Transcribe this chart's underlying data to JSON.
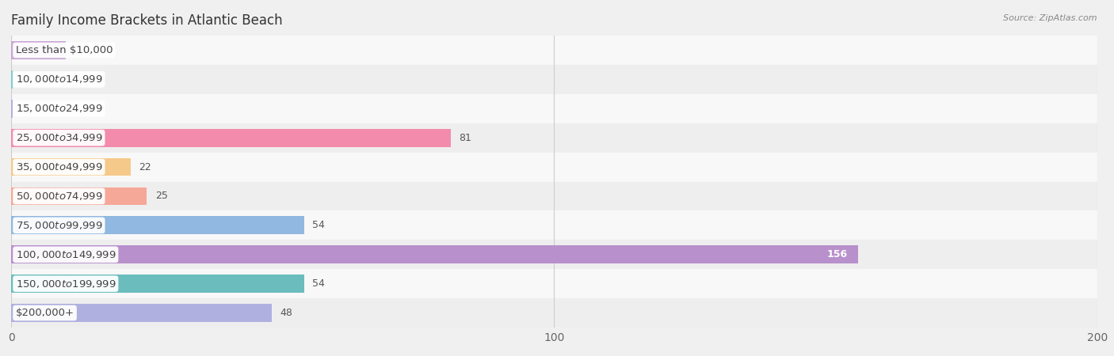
{
  "title": "Family Income Brackets in Atlantic Beach",
  "source_text": "Source: ZipAtlas.com",
  "categories": [
    "Less than $10,000",
    "$10,000 to $14,999",
    "$15,000 to $24,999",
    "$25,000 to $34,999",
    "$35,000 to $49,999",
    "$50,000 to $74,999",
    "$75,000 to $99,999",
    "$100,000 to $149,999",
    "$150,000 to $199,999",
    "$200,000+"
  ],
  "values": [
    10,
    0,
    0,
    81,
    22,
    25,
    54,
    156,
    54,
    48
  ],
  "bar_colors": [
    "#c9a8d4",
    "#7ecece",
    "#b3b0df",
    "#f28bac",
    "#f5c98a",
    "#f5a898",
    "#90b8e0",
    "#b890cc",
    "#6bbcbc",
    "#b0b0e0"
  ],
  "xlim": [
    0,
    200
  ],
  "xticks": [
    0,
    100,
    200
  ],
  "bg_color": "#f0f0f0",
  "row_light": "#f8f8f8",
  "row_dark": "#eeeeee",
  "title_fontsize": 12,
  "label_fontsize": 9.5,
  "value_fontsize": 9
}
